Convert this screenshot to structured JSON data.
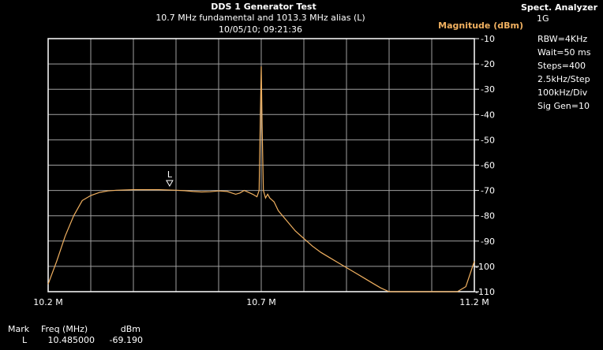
{
  "colors": {
    "background": "#000000",
    "text": "#ffffff",
    "grid": "#a0a0a0",
    "frame": "#ffffff",
    "trace": "#f0b060",
    "magnitude_label": "#f0b060"
  },
  "chart_data": {
    "type": "line",
    "title": "DDS 1 Generator Test",
    "subtitle": "10.7 MHz fundamental and 1013.3 MHz alias (L)",
    "timestamp": "10/05/10; 09:21:36",
    "ylabel": "Magnitude (dBm)",
    "xlim": [
      10.2,
      11.2
    ],
    "ylim": [
      -110,
      -10
    ],
    "x_ticks": [
      10.2,
      10.7,
      11.2
    ],
    "x_tick_labels": [
      "10.2 M",
      "10.7 M",
      "11.2 M"
    ],
    "y_ticks": [
      -10,
      -20,
      -30,
      -40,
      -50,
      -60,
      -70,
      -80,
      -90,
      -100,
      -110
    ],
    "y_tick_labels": [
      "-10",
      "-20",
      "-30",
      "-40",
      "-50",
      "-60",
      "-70",
      "-80",
      "-90",
      "-100",
      "-110"
    ],
    "grid": true,
    "series": [
      {
        "x": [
          10.2,
          10.22,
          10.24,
          10.26,
          10.28,
          10.3,
          10.32,
          10.34,
          10.36,
          10.38,
          10.4,
          10.42,
          10.44,
          10.46,
          10.48,
          10.5,
          10.52,
          10.54,
          10.56,
          10.58,
          10.6,
          10.62,
          10.64,
          10.65,
          10.66,
          10.68,
          10.69,
          10.695,
          10.698,
          10.7,
          10.702,
          10.705,
          10.71,
          10.715,
          10.72,
          10.73,
          10.74,
          10.76,
          10.78,
          10.8,
          10.82,
          10.84,
          10.86,
          10.88,
          10.9,
          10.92,
          10.94,
          10.96,
          10.98,
          11.0,
          11.02,
          11.04,
          11.06,
          11.08,
          11.1,
          11.12,
          11.14,
          11.16,
          11.18,
          11.2
        ],
        "y": [
          -107,
          -98,
          -88,
          -80,
          -74,
          -72,
          -70.8,
          -70.2,
          -69.9,
          -69.8,
          -69.7,
          -69.7,
          -69.7,
          -69.7,
          -69.8,
          -69.9,
          -70.1,
          -70.4,
          -70.6,
          -70.5,
          -70.2,
          -70.4,
          -71.5,
          -71.0,
          -70.0,
          -71.5,
          -72.5,
          -70.0,
          -40,
          -21,
          -45,
          -70.0,
          -73.0,
          -71.5,
          -73.0,
          -74.5,
          -78,
          -82,
          -86,
          -89,
          -92,
          -94.5,
          -96.5,
          -98.5,
          -100.5,
          -102.5,
          -104.5,
          -106.5,
          -108.5,
          -110,
          -110,
          -110,
          -110,
          -110,
          -110,
          -110,
          -110,
          -110,
          -108,
          -98
        ]
      }
    ],
    "marker": {
      "label": "L",
      "x": 10.485,
      "y": -69.19
    },
    "readout": {
      "headers": [
        "Mark",
        "Freq (MHz)",
        "dBm"
      ],
      "row": [
        "L",
        "10.485000",
        "-69.190"
      ]
    },
    "settings": {
      "title": "Spect. Analyzer",
      "lines": [
        "1G",
        "RBW=4KHz",
        "Wait=50 ms",
        "Steps=400",
        "2.5kHz/Step",
        "100kHz/Div",
        "Sig Gen=10"
      ]
    }
  }
}
